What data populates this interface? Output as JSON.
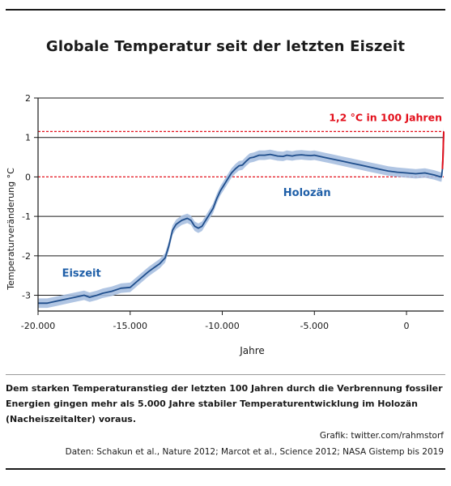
{
  "title": "Globale Temperatur seit der letzten Eiszeit",
  "caption": "Dem starken Temperaturanstieg der letzten 100 Jahren durch die Verbrennung fossiler Energien gingen mehr als 5.000 Jahre stabiler Temperaturentwicklung im Holozän (Nacheiszeitalter) voraus.",
  "credit_graphic": "Grafik: twitter.com/rahmstorf",
  "credit_data": "Daten: Schakun et al., Nature 2012; Marcot et al., Science 2012; NASA Gistemp bis 2019",
  "colors": {
    "line": "#1f4e8c",
    "band": "#a7bfe0",
    "annotation": "#e3101c",
    "period_label": "#1f5fa8",
    "grid": "#1a1a1a"
  },
  "chart_data": {
    "type": "line",
    "title": "Globale Temperatur seit der letzten Eiszeit",
    "xlabel": "Jahre",
    "ylabel": "Temperaturveränderung °C",
    "xlim": [
      -20000,
      2020
    ],
    "ylim": [
      -3.4,
      2
    ],
    "xticks": [
      -20000,
      -15000,
      -10000,
      -5000,
      0
    ],
    "xtick_labels": [
      "-20.000",
      "-15.000",
      "-10.000",
      "-5.000",
      "0"
    ],
    "yticks": [
      -3,
      -2,
      -1,
      0,
      1,
      2
    ],
    "ytick_labels": [
      "-3",
      "-2",
      "-1",
      "0",
      "1",
      "2"
    ],
    "grid": "horizontal",
    "series": [
      {
        "x": [
          -20000,
          -19500,
          -19000,
          -18500,
          -18000,
          -17500,
          -17200,
          -16800,
          -16500,
          -16000,
          -15500,
          -15000,
          -14500,
          -14000,
          -13700,
          -13400,
          -13100,
          -12900,
          -12700,
          -12500,
          -12200,
          -11900,
          -11700,
          -11500,
          -11300,
          -11100,
          -10900,
          -10700,
          -10500,
          -10300,
          -10100,
          -9900,
          -9700,
          -9500,
          -9300,
          -9100,
          -8900,
          -8700,
          -8500,
          -8300,
          -8000,
          -7700,
          -7400,
          -7000,
          -6700,
          -6500,
          -6200,
          -6000,
          -5700,
          -5500,
          -5200,
          -5000,
          -4500,
          -4000,
          -3500,
          -3000,
          -2500,
          -2000,
          -1500,
          -1000,
          -500,
          0,
          500,
          1000,
          1500,
          1850,
          1900,
          1950,
          1980,
          2000,
          2019
        ],
        "y": [
          -3.2,
          -3.2,
          -3.15,
          -3.1,
          -3.05,
          -3.0,
          -3.05,
          -3.0,
          -2.95,
          -2.9,
          -2.82,
          -2.8,
          -2.6,
          -2.4,
          -2.3,
          -2.2,
          -2.05,
          -1.75,
          -1.35,
          -1.2,
          -1.1,
          -1.05,
          -1.1,
          -1.25,
          -1.3,
          -1.25,
          -1.1,
          -0.95,
          -0.8,
          -0.55,
          -0.35,
          -0.2,
          -0.05,
          0.1,
          0.2,
          0.28,
          0.3,
          0.4,
          0.48,
          0.5,
          0.55,
          0.55,
          0.57,
          0.53,
          0.52,
          0.55,
          0.53,
          0.55,
          0.56,
          0.55,
          0.54,
          0.55,
          0.5,
          0.45,
          0.4,
          0.35,
          0.3,
          0.25,
          0.2,
          0.15,
          0.12,
          0.1,
          0.08,
          0.1,
          0.05,
          0.0,
          0.0,
          0.2,
          0.5,
          0.8,
          1.15
        ],
        "uncertainty": 0.12
      }
    ],
    "reference_lines": [
      {
        "y": 0,
        "style": "dashed",
        "color": "#e3101c"
      },
      {
        "y": 1.15,
        "style": "dashed",
        "color": "#e3101c"
      }
    ],
    "annotations": [
      {
        "text": "1,2 °C in 100 Jahren",
        "x": 2019,
        "y": 1.5,
        "color": "#e3101c"
      },
      {
        "text": "Holozän",
        "x": -5400,
        "y": -0.4,
        "color": "#1f5fa8"
      },
      {
        "text": "Eiszeit",
        "x": -18700,
        "y": -2.45,
        "color": "#1f5fa8"
      }
    ]
  }
}
